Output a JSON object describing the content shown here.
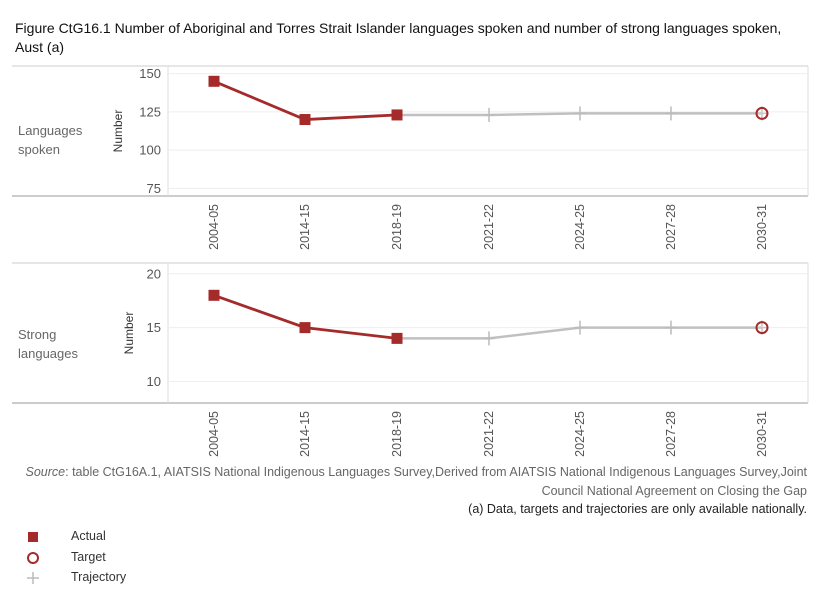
{
  "title": "Figure CtG16.1 Number of Aboriginal and Torres Strait Islander languages spoken and number of strong languages spoken, Aust (a)",
  "colors": {
    "actual": "#a52a2a",
    "trajectory": "#c0c0c0",
    "target": "#a52a2a"
  },
  "chart_data": [
    {
      "type": "line",
      "row_label": "Languages spoken",
      "ylabel": "Number",
      "ylim": [
        70,
        155
      ],
      "yticks": [
        75,
        100,
        125,
        150
      ],
      "categories": [
        "2004-05",
        "2014-15",
        "2018-19",
        "2021-22",
        "2024-25",
        "2027-28",
        "2030-31"
      ],
      "series": [
        {
          "name": "Actual",
          "points": [
            {
              "x": "2004-05",
              "y": 145
            },
            {
              "x": "2014-15",
              "y": 120
            },
            {
              "x": "2018-19",
              "y": 123
            }
          ]
        },
        {
          "name": "Trajectory",
          "points": [
            {
              "x": "2018-19",
              "y": 123
            },
            {
              "x": "2021-22",
              "y": 123
            },
            {
              "x": "2024-25",
              "y": 124
            },
            {
              "x": "2027-28",
              "y": 124
            },
            {
              "x": "2030-31",
              "y": 124
            }
          ]
        },
        {
          "name": "Target",
          "points": [
            {
              "x": "2030-31",
              "y": 124
            }
          ]
        }
      ]
    },
    {
      "type": "line",
      "row_label": "Strong languages",
      "ylabel": "Number",
      "ylim": [
        8,
        21
      ],
      "yticks": [
        10,
        15,
        20
      ],
      "categories": [
        "2004-05",
        "2014-15",
        "2018-19",
        "2021-22",
        "2024-25",
        "2027-28",
        "2030-31"
      ],
      "series": [
        {
          "name": "Actual",
          "points": [
            {
              "x": "2004-05",
              "y": 18
            },
            {
              "x": "2014-15",
              "y": 15
            },
            {
              "x": "2018-19",
              "y": 14
            }
          ]
        },
        {
          "name": "Trajectory",
          "points": [
            {
              "x": "2018-19",
              "y": 14
            },
            {
              "x": "2021-22",
              "y": 14
            },
            {
              "x": "2024-25",
              "y": 15
            },
            {
              "x": "2027-28",
              "y": 15
            },
            {
              "x": "2030-31",
              "y": 15
            }
          ]
        },
        {
          "name": "Target",
          "points": [
            {
              "x": "2030-31",
              "y": 15
            }
          ]
        }
      ]
    }
  ],
  "source": {
    "label": "Source",
    "text": ": table CtG16A.1, AIATSIS National Indigenous Languages Survey,Derived from AIATSIS National Indigenous Languages Survey,Joint Council National Agreement on Closing the Gap"
  },
  "note": "(a) Data, targets and trajectories are only available nationally.",
  "legend": [
    {
      "label": "Actual",
      "symbol": "square"
    },
    {
      "label": "Target",
      "symbol": "circle"
    },
    {
      "label": "Trajectory",
      "symbol": "plus"
    }
  ]
}
